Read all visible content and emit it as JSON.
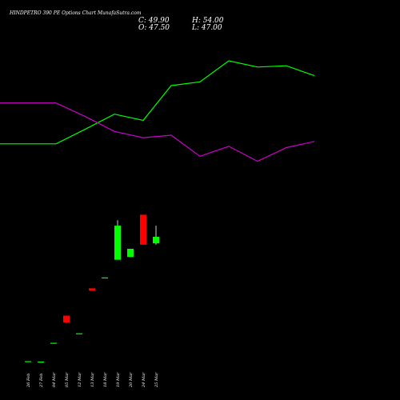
{
  "header": {
    "title": "HINDPETRO 390  PE Options  Chart MunafaSutra.com",
    "close_label": "C: 49.90",
    "open_label": "O: 47.50",
    "high_label": "H: 54.00",
    "low_label": "L: 47.00"
  },
  "chart_data": {
    "type": "candlestick",
    "title": "HINDPETRO 390  PE Options  Chart MunafaSutra.com",
    "categories": [
      "26 Feb",
      "27 Feb",
      "04 Mar",
      "05 Mar",
      "12 Mar",
      "13 Mar",
      "18 Mar",
      "19 Mar",
      "20 Mar",
      "24 Mar",
      "25 Mar"
    ],
    "ohlc": [
      {
        "open": 4.25,
        "high": 4.25,
        "low": 4.25,
        "close": 4.25
      },
      {
        "open": 4.1,
        "high": 4.1,
        "low": 4.1,
        "close": 4.1
      },
      {
        "open": 11.0,
        "high": 11.0,
        "low": 11.0,
        "close": 11.0
      },
      {
        "open": 21.0,
        "high": 21.0,
        "low": 18.0,
        "close": 18.5
      },
      {
        "open": 14.5,
        "high": 14.5,
        "low": 14.5,
        "close": 14.5
      },
      {
        "open": 31.0,
        "high": 31.0,
        "low": 30.2,
        "close": 30.2
      },
      {
        "open": 35.0,
        "high": 35.0,
        "low": 35.0,
        "close": 35.0
      },
      {
        "open": 41.5,
        "high": 56.0,
        "low": 41.5,
        "close": 54.0
      },
      {
        "open": 42.5,
        "high": 45.5,
        "low": 42.5,
        "close": 45.5
      },
      {
        "open": 58.0,
        "high": 58.0,
        "low": 47.0,
        "close": 47.0
      },
      {
        "open": 47.5,
        "high": 54.0,
        "low": 47.0,
        "close": 49.9
      }
    ],
    "series": [
      {
        "color": "#00ff00",
        "line_values": [
          33,
          33,
          33,
          45,
          57,
          52,
          80,
          83,
          100,
          95,
          96,
          88
        ]
      },
      {
        "color": "#cc00cc",
        "line_values": [
          66,
          66,
          66,
          55,
          43,
          38,
          40,
          23,
          31,
          19,
          30,
          35
        ]
      }
    ],
    "line_ylim": [
      0,
      100
    ],
    "ylim": [
      0,
      64
    ],
    "candle_colors": {
      "up": "#00ff00",
      "down": "#ff0000"
    },
    "grid": false,
    "background": "#000000"
  }
}
